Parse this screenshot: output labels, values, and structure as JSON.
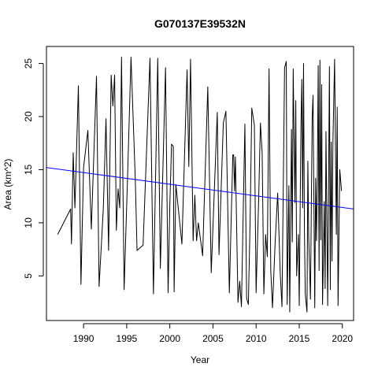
{
  "chart_data": {
    "type": "line",
    "title": "G070137E39532N",
    "xlabel": "Year",
    "ylabel": "Area (km^2)",
    "xlim": [
      1985.7,
      2021.3
    ],
    "ylim": [
      0.8,
      26.6
    ],
    "x_ticks": [
      1990,
      1995,
      2000,
      2005,
      2010,
      2015,
      2020
    ],
    "y_ticks": [
      5,
      10,
      15,
      20,
      25
    ],
    "colors": {
      "series": "#000000",
      "trend": "#0000ff"
    },
    "series": [
      {
        "color": "#000000",
        "points": [
          [
            1987.0,
            8.9
          ],
          [
            1988.5,
            11.3
          ],
          [
            1988.6,
            8.0
          ],
          [
            1988.8,
            16.6
          ],
          [
            1989.0,
            11.4
          ],
          [
            1989.4,
            22.9
          ],
          [
            1989.7,
            4.2
          ],
          [
            1990.0,
            15.2
          ],
          [
            1990.5,
            18.7
          ],
          [
            1990.9,
            9.4
          ],
          [
            1991.5,
            23.8
          ],
          [
            1991.8,
            4.0
          ],
          [
            1992.3,
            11.5
          ],
          [
            1992.6,
            19.8
          ],
          [
            1992.9,
            7.4
          ],
          [
            1993.2,
            23.9
          ],
          [
            1993.4,
            21.0
          ],
          [
            1993.6,
            23.9
          ],
          [
            1993.8,
            9.3
          ],
          [
            1994.0,
            13.2
          ],
          [
            1994.2,
            11.4
          ],
          [
            1994.4,
            25.6
          ],
          [
            1994.7,
            3.7
          ],
          [
            1995.1,
            14.3
          ],
          [
            1995.5,
            25.6
          ],
          [
            1996.0,
            14.0
          ],
          [
            1996.2,
            7.4
          ],
          [
            1996.9,
            7.9
          ],
          [
            1997.7,
            25.5
          ],
          [
            1998.1,
            3.3
          ],
          [
            1998.6,
            25.5
          ],
          [
            1998.9,
            5.7
          ],
          [
            1999.5,
            24.6
          ],
          [
            1999.8,
            3.4
          ],
          [
            2000.0,
            11.7
          ],
          [
            2000.2,
            17.4
          ],
          [
            2000.4,
            17.2
          ],
          [
            2000.5,
            3.5
          ],
          [
            2000.7,
            13.6
          ],
          [
            2001.4,
            8.0
          ],
          [
            2002.0,
            24.4
          ],
          [
            2002.2,
            15.3
          ],
          [
            2002.4,
            25.4
          ],
          [
            2002.7,
            8.3
          ],
          [
            2002.9,
            12.6
          ],
          [
            2003.1,
            8.3
          ],
          [
            2003.3,
            10.0
          ],
          [
            2003.8,
            6.9
          ],
          [
            2004.4,
            22.8
          ],
          [
            2004.8,
            5.3
          ],
          [
            2005.5,
            20.4
          ],
          [
            2005.7,
            7.0
          ],
          [
            2006.2,
            19.4
          ],
          [
            2006.5,
            20.5
          ],
          [
            2006.9,
            3.4
          ],
          [
            2007.3,
            16.4
          ],
          [
            2007.4,
            16.4
          ],
          [
            2007.5,
            13.0
          ],
          [
            2007.6,
            16.2
          ],
          [
            2007.9,
            2.5
          ],
          [
            2008.1,
            4.5
          ],
          [
            2008.3,
            2.1
          ],
          [
            2008.7,
            19.3
          ],
          [
            2008.9,
            2.9
          ],
          [
            2009.1,
            2.3
          ],
          [
            2009.3,
            9.9
          ],
          [
            2009.5,
            20.8
          ],
          [
            2009.8,
            19.2
          ],
          [
            2010.0,
            3.4
          ],
          [
            2010.3,
            12.3
          ],
          [
            2010.5,
            19.4
          ],
          [
            2010.7,
            16.6
          ],
          [
            2010.9,
            3.3
          ],
          [
            2011.1,
            8.9
          ],
          [
            2011.3,
            6.8
          ],
          [
            2011.5,
            24.5
          ],
          [
            2011.7,
            5.5
          ],
          [
            2011.9,
            2.0
          ],
          [
            2012.2,
            8.0
          ],
          [
            2012.5,
            12.8
          ],
          [
            2012.8,
            5.2
          ],
          [
            2013.0,
            2.1
          ],
          [
            2013.3,
            24.6
          ],
          [
            2013.5,
            25.2
          ],
          [
            2013.6,
            2.3
          ],
          [
            2013.8,
            13.5
          ],
          [
            2013.9,
            1.6
          ],
          [
            2014.1,
            18.8
          ],
          [
            2014.2,
            8.2
          ],
          [
            2014.3,
            24.5
          ],
          [
            2014.5,
            11.9
          ],
          [
            2014.6,
            21.5
          ],
          [
            2014.7,
            5.0
          ],
          [
            2014.9,
            8.9
          ],
          [
            2015.0,
            2.2
          ],
          [
            2015.1,
            10.7
          ],
          [
            2015.2,
            19.1
          ],
          [
            2015.3,
            23.5
          ],
          [
            2015.4,
            11.4
          ],
          [
            2015.5,
            25.0
          ],
          [
            2015.6,
            9.3
          ],
          [
            2015.7,
            3.3
          ],
          [
            2015.9,
            1.6
          ],
          [
            2016.0,
            15.8
          ],
          [
            2016.1,
            8.6
          ],
          [
            2016.3,
            2.8
          ],
          [
            2016.5,
            19.9
          ],
          [
            2016.6,
            22.0
          ],
          [
            2016.8,
            2.0
          ],
          [
            2016.9,
            14.2
          ],
          [
            2017.0,
            8.3
          ],
          [
            2017.1,
            14.5
          ],
          [
            2017.2,
            24.8
          ],
          [
            2017.3,
            5.5
          ],
          [
            2017.4,
            25.3
          ],
          [
            2017.5,
            8.4
          ],
          [
            2017.6,
            23.0
          ],
          [
            2017.7,
            2.3
          ],
          [
            2017.8,
            6.5
          ],
          [
            2017.9,
            12.0
          ],
          [
            2018.0,
            3.8
          ],
          [
            2018.1,
            18.6
          ],
          [
            2018.3,
            2.2
          ],
          [
            2018.5,
            24.7
          ],
          [
            2018.6,
            3.7
          ],
          [
            2018.7,
            17.6
          ],
          [
            2018.8,
            6.4
          ],
          [
            2018.9,
            17.4
          ],
          [
            2019.1,
            25.4
          ],
          [
            2019.3,
            8.9
          ],
          [
            2019.4,
            20.9
          ],
          [
            2019.5,
            2.2
          ],
          [
            2019.7,
            15.0
          ],
          [
            2019.9,
            13.0
          ]
        ]
      }
    ],
    "trendline": {
      "color": "#0000ff",
      "from": [
        1985.7,
        15.2
      ],
      "to": [
        2021.3,
        11.3
      ]
    }
  }
}
